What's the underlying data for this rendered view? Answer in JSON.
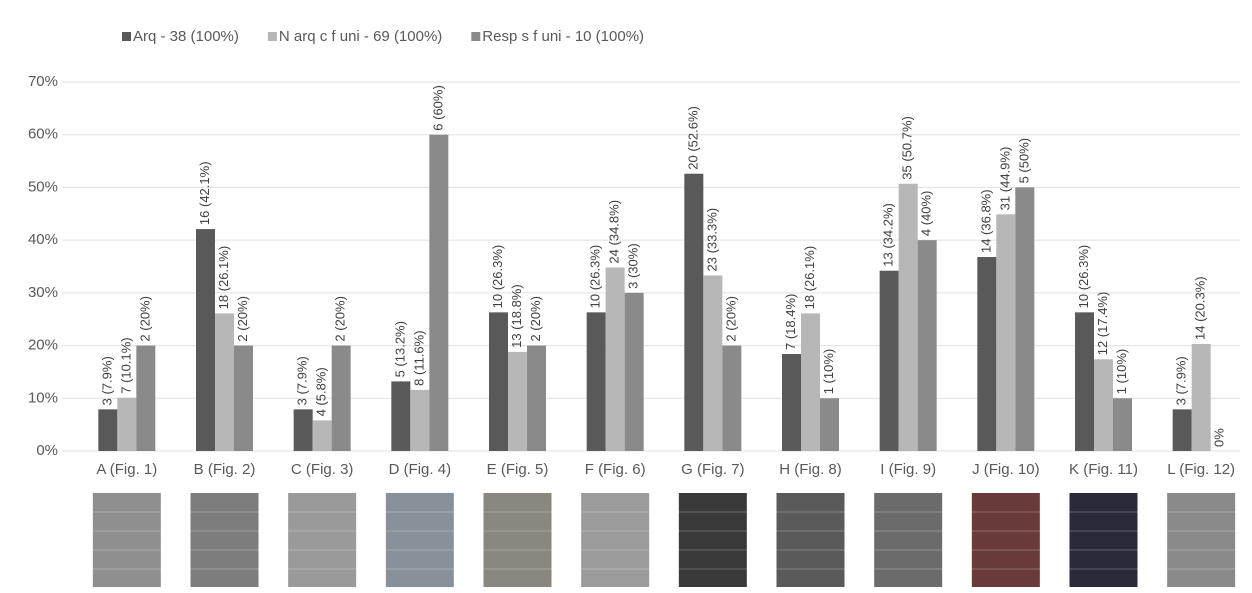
{
  "chart_data": {
    "type": "bar",
    "categories": [
      "A (Fig. 1)",
      "B (Fig. 2)",
      "C (Fig. 3)",
      "D (Fig. 4)",
      "E (Fig. 5)",
      "F (Fig. 6)",
      "G (Fig. 7)",
      "H (Fig. 8)",
      "I (Fig. 9)",
      "J (Fig. 10)",
      "K (Fig. 11)",
      "L (Fig. 12)"
    ],
    "series": [
      {
        "name": "Arq - 38 (100%)",
        "color": "#595959",
        "values": [
          7.9,
          42.1,
          7.9,
          13.2,
          26.3,
          26.3,
          52.6,
          18.4,
          34.2,
          36.8,
          26.3,
          7.9
        ],
        "value_labels": [
          "3 (7.9%)",
          "16 (42.1%)",
          "3 (7.9%)",
          "5 (13.2%)",
          "10 (26.3%)",
          "10 (26.3%)",
          "20 (52.6%)",
          "7 (18.4%)",
          "13 (34.2%)",
          "14 (36.8%)",
          "10 (26.3%)",
          "3 (7.9%)"
        ]
      },
      {
        "name": "N arq c f uni - 69 (100%)",
        "color": "#b7b7b7",
        "values": [
          10.1,
          26.1,
          5.8,
          11.6,
          18.8,
          34.8,
          33.3,
          26.1,
          50.7,
          44.9,
          17.4,
          20.3
        ],
        "value_labels": [
          "7 (10.1%)",
          "18 (26.1%)",
          "4 (5.8%)",
          "8 (11.6%)",
          "13 (18.8%)",
          "24 (34.8%)",
          "23 (33.3%)",
          "18 (26.1%)",
          "35 (50.7%)",
          "31 (44.9%)",
          "12 (17.4%)",
          "14 (20.3%)"
        ]
      },
      {
        "name": "Resp s f uni - 10 (100%)",
        "color": "#8a8a8a",
        "values": [
          20,
          20,
          20,
          60,
          20,
          30,
          20,
          10,
          40,
          50,
          10,
          0
        ],
        "value_labels": [
          "2 (20%)",
          "2 (20%)",
          "2 (20%)",
          "6 (60%)",
          "2 (20%)",
          "3 (30%)",
          "2 (20%)",
          "1 (10%)",
          "4 (40%)",
          "5 (50%)",
          "1 (10%)",
          "0%"
        ]
      }
    ],
    "ylim": [
      0,
      70
    ],
    "yticks": [
      {
        "value": 0,
        "label": "0%"
      },
      {
        "value": 10,
        "label": "10%"
      },
      {
        "value": 20,
        "label": "20%"
      },
      {
        "value": 30,
        "label": "30%"
      },
      {
        "value": 40,
        "label": "40%"
      },
      {
        "value": 50,
        "label": "50%"
      },
      {
        "value": 60,
        "label": "60%"
      },
      {
        "value": 70,
        "label": "70%"
      }
    ],
    "grid": true,
    "legend": "top"
  }
}
